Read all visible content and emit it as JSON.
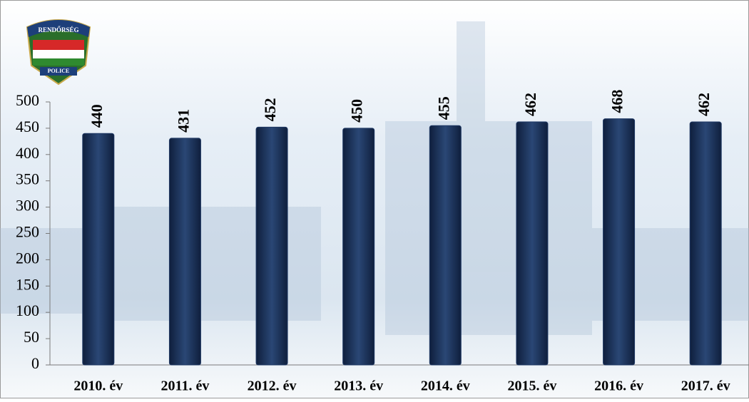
{
  "logo": {
    "top": "RENDŐRSÉG",
    "bottom": "POLICE"
  },
  "chart_data": {
    "type": "bar",
    "categories": [
      "2010. év",
      "2011. év",
      "2012. év",
      "2013. év",
      "2014. év",
      "2015. év",
      "2016. év",
      "2017. év"
    ],
    "values": [
      440,
      431,
      452,
      450,
      455,
      462,
      468,
      462
    ],
    "color": "#1f3864",
    "ylim": [
      0,
      500
    ],
    "yticks": [
      0,
      50,
      100,
      150,
      200,
      250,
      300,
      350,
      400,
      450,
      500
    ],
    "grid": false
  }
}
